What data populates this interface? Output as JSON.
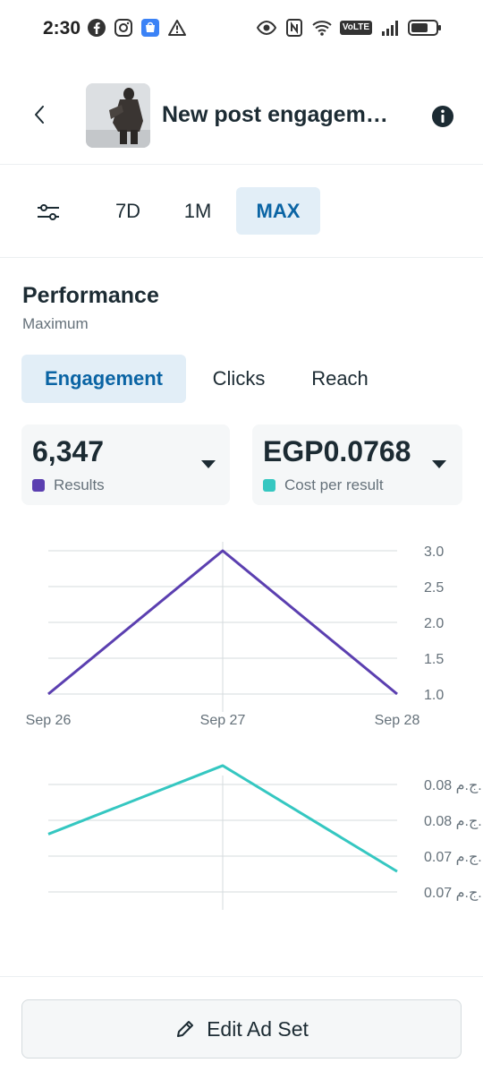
{
  "status_bar": {
    "time": "2:30",
    "left_icons": [
      "facebook-icon",
      "instagram-icon",
      "store-icon",
      "warning-icon"
    ],
    "right_icons": [
      "eye-icon",
      "nfc-icon",
      "wifi-icon",
      "volte-badge",
      "signal-icon",
      "battery-icon"
    ],
    "volte_label": "VoLTE"
  },
  "header": {
    "title": "New post engagem…"
  },
  "date_filter": {
    "options": [
      "7D",
      "1M",
      "MAX"
    ],
    "selected": "MAX"
  },
  "performance": {
    "title": "Performance",
    "subtitle": "Maximum",
    "tabs": [
      "Engagement",
      "Clicks",
      "Reach"
    ],
    "selected_tab": "Engagement"
  },
  "metrics": {
    "results": {
      "value": "6,347",
      "label": "Results",
      "color": "#5b3fb0"
    },
    "cost": {
      "value": "EGP0.0768",
      "label": "Cost per result",
      "color": "#35c7c1"
    }
  },
  "chart_data": [
    {
      "type": "line",
      "categories": [
        "Sep 26",
        "Sep 27",
        "Sep 28"
      ],
      "series": [
        {
          "name": "Results",
          "values": [
            1.0,
            3.0,
            1.0
          ],
          "color": "#5b3fb0"
        }
      ],
      "ylim": [
        1.0,
        3.0
      ],
      "yticks": [
        "3.0",
        "2.5",
        "2.0",
        "1.5",
        "1.0"
      ],
      "grid": true
    },
    {
      "type": "line",
      "categories": [
        "Sep 26",
        "Sep 27",
        "Sep 28"
      ],
      "series": [
        {
          "name": "Cost per result",
          "values": [
            0.0745,
            0.08,
            0.0715
          ],
          "color": "#35c7c1"
        }
      ],
      "ylim": [
        0.07,
        0.0805
      ],
      "yticks": [
        "0.08 ج.م.",
        "0.08 ج.م.",
        "0.07 ج.م.",
        "0.07 ج.م."
      ],
      "grid": true
    }
  ],
  "footer": {
    "edit_label": "Edit Ad Set"
  }
}
